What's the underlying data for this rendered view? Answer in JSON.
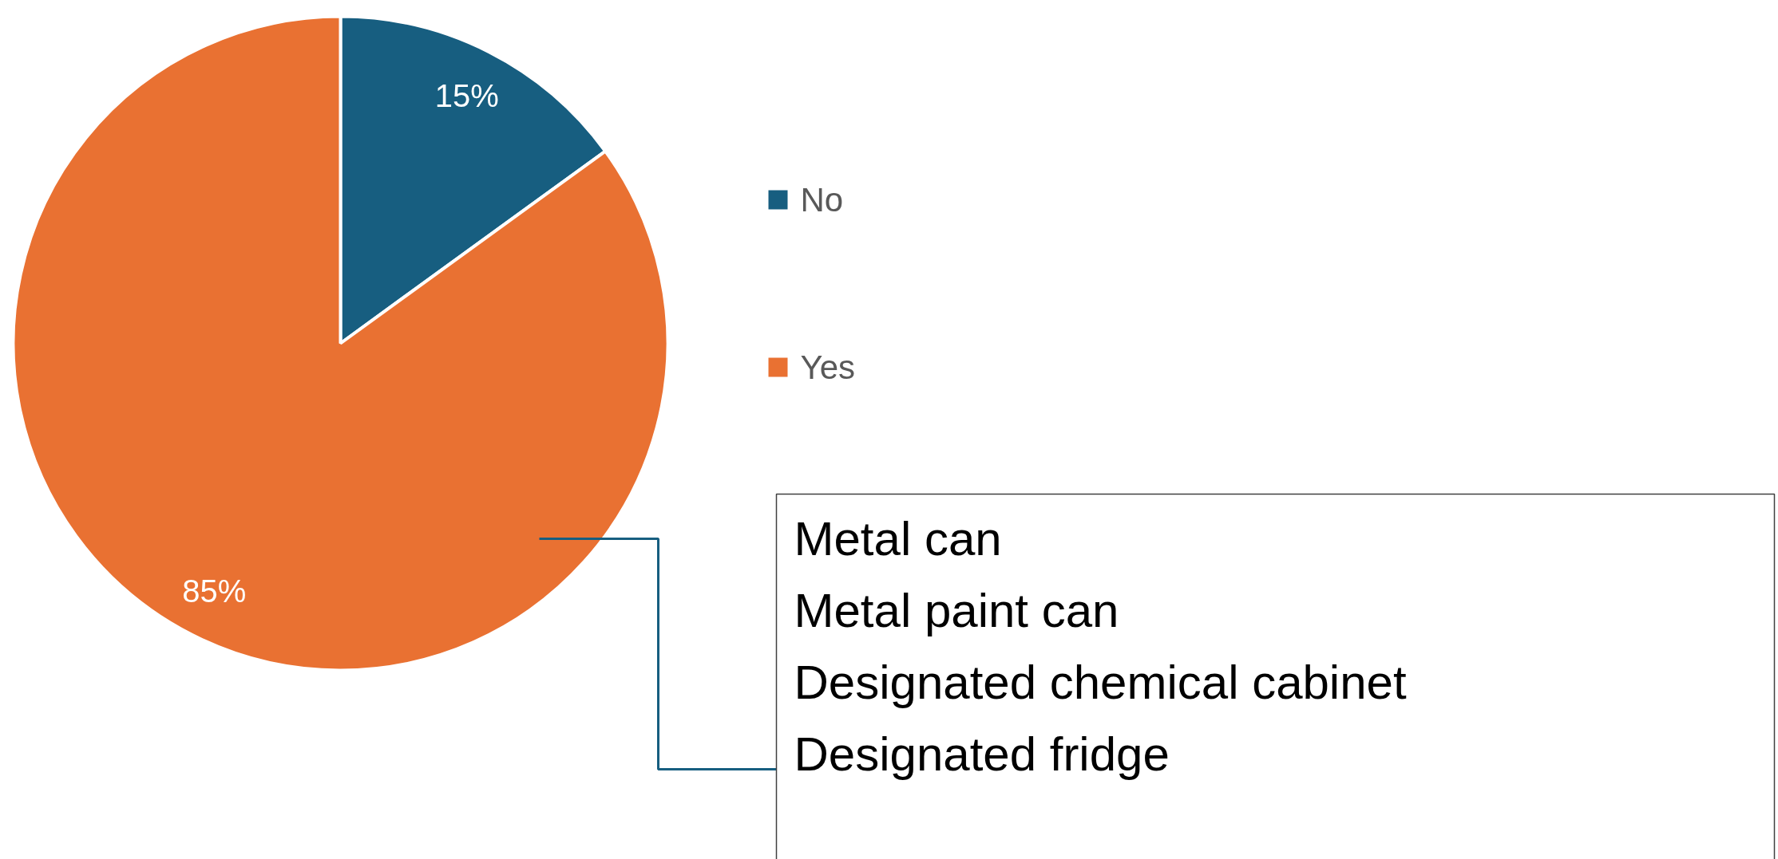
{
  "chart_data": {
    "type": "pie",
    "categories": [
      "No",
      "Yes"
    ],
    "values": [
      15,
      85
    ],
    "colors": [
      "#175e80",
      "#e97132"
    ],
    "value_labels": [
      "15%",
      "85%"
    ],
    "legend": "right",
    "annotations": [
      "Metal can\nMetal paint can\nDesignated chemical cabinet\nDesignated fridge"
    ]
  }
}
